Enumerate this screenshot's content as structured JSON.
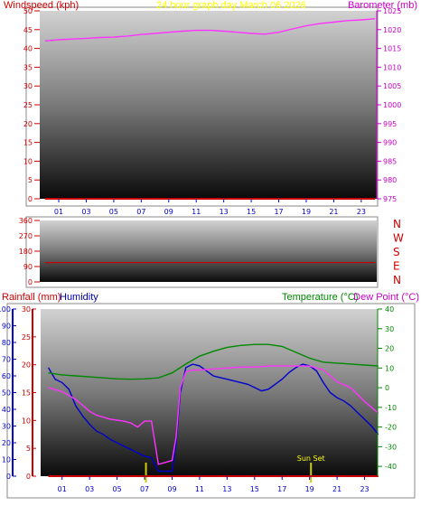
{
  "chart_data": [
    {
      "type": "line",
      "panel": "wind-barometer",
      "title": "24 hour graph day   March 06 2026",
      "left_label": "Windspeed (kph)",
      "right_label": "Barometer (mb)",
      "x_ticks": [
        "01",
        "03",
        "05",
        "07",
        "09",
        "11",
        "13",
        "15",
        "17",
        "19",
        "21",
        "23"
      ],
      "y_left_ticks": [
        "0",
        "5",
        "10",
        "15",
        "20",
        "25",
        "30",
        "35",
        "40",
        "45",
        "50"
      ],
      "y_left_range": [
        0,
        50
      ],
      "y_right_ticks": [
        "975",
        "980",
        "985",
        "990",
        "995",
        "1000",
        "1005",
        "1010",
        "1015",
        "1020",
        "1025"
      ],
      "y_right_range": [
        975,
        1025
      ],
      "series": [
        {
          "axis": "right",
          "color": "#ff33ff",
          "x": [
            0,
            1,
            2,
            3,
            4,
            5,
            6,
            7,
            8,
            9,
            10,
            11,
            12,
            13,
            14,
            15,
            16,
            17,
            18,
            19,
            20,
            21,
            22,
            23,
            24
          ],
          "y": [
            1017,
            1017.3,
            1017.5,
            1017.7,
            1017.9,
            1018,
            1018.3,
            1018.7,
            1019,
            1019.3,
            1019.6,
            1019.8,
            1019.8,
            1019.6,
            1019.3,
            1019,
            1018.8,
            1019.3,
            1020.2,
            1021,
            1021.6,
            1022,
            1022.4,
            1022.6,
            1022.9
          ]
        },
        {
          "axis": "left",
          "color": "#cc0000",
          "x": [
            0,
            24
          ],
          "y": [
            0,
            0
          ]
        }
      ]
    },
    {
      "type": "line",
      "panel": "wind-direction",
      "y_left_ticks": [
        "0",
        "90",
        "180",
        "270",
        "360"
      ],
      "y_left_range": [
        0,
        360
      ],
      "compass": [
        "N",
        "W",
        "S",
        "E",
        "N"
      ],
      "series": [
        {
          "color": "#cc0000",
          "x": [
            0,
            24
          ],
          "y": [
            113,
            113
          ]
        }
      ]
    },
    {
      "type": "line",
      "panel": "rain-humidity-temperature",
      "left_label_rain": "Rainfall (mm)",
      "left_label_humidity": "Humidity",
      "right_label_temp": "Temperature (°C)",
      "right_label_dew": "Dew Point (°C)",
      "x_ticks": [
        "01",
        "03",
        "05",
        "07",
        "09",
        "11",
        "13",
        "15",
        "17",
        "19",
        "21",
        "23"
      ],
      "y_humidity_ticks": [
        "0",
        "10",
        "20",
        "30",
        "40",
        "50",
        "60",
        "70",
        "80",
        "90",
        "100"
      ],
      "y_humidity_range": [
        0,
        100
      ],
      "y_rain_ticks": [
        "0",
        "5",
        "10",
        "15",
        "20",
        "25",
        "30"
      ],
      "y_rain_range": [
        0,
        30
      ],
      "y_temp_ticks": [
        "-40",
        "-30",
        "-20",
        "-10",
        "0",
        "10",
        "20",
        "30",
        "40"
      ],
      "y_temp_range": [
        -45,
        40
      ],
      "annotations": [
        {
          "text": "Sun Set",
          "x": 19.1
        },
        {
          "text": "",
          "x": 7.1
        },
        {
          "text": "",
          "x": 19.1
        }
      ],
      "series": [
        {
          "name": "Humidity",
          "axis": "humidity",
          "color": "#0000cc",
          "x": [
            0,
            0.5,
            1,
            1.5,
            2,
            2.5,
            3,
            3.5,
            4,
            4.5,
            5,
            5.5,
            6,
            6.5,
            7,
            7.5,
            8,
            8.5,
            9,
            9.3,
            9.6,
            10,
            10.5,
            11,
            11.5,
            12,
            12.5,
            13,
            13.5,
            14,
            14.5,
            15,
            15.5,
            16,
            16.5,
            17,
            17.5,
            18,
            18.5,
            19,
            19.5,
            20,
            20.5,
            21,
            21.5,
            22,
            22.5,
            23,
            23.5,
            24
          ],
          "y": [
            65,
            58,
            56,
            52,
            42,
            36,
            31,
            27,
            25,
            22,
            20,
            18,
            16,
            14,
            12,
            11,
            3,
            3,
            3,
            20,
            50,
            65,
            67,
            66,
            63,
            60,
            59,
            58,
            57,
            56,
            55,
            53,
            51,
            52,
            55,
            58,
            62,
            65,
            67,
            66,
            63,
            56,
            50,
            47,
            45,
            42,
            38,
            34,
            30,
            25
          ]
        },
        {
          "name": "Temperature (°C)",
          "axis": "temp",
          "color": "#008800",
          "x": [
            0,
            1,
            2,
            3,
            4,
            5,
            6,
            7,
            8,
            9,
            10,
            11,
            12,
            13,
            14,
            15,
            16,
            17,
            18,
            19,
            20,
            21,
            22,
            23,
            24
          ],
          "y": [
            7.5,
            6.5,
            6,
            5.5,
            5,
            4.5,
            4.3,
            4.5,
            5,
            7.5,
            12,
            16,
            18.5,
            20.5,
            21.5,
            22,
            22,
            21,
            18,
            15,
            13,
            12.5,
            12,
            11.5,
            11
          ]
        },
        {
          "name": "Dew Point (°C)",
          "axis": "temp",
          "color": "#ff33ff",
          "x": [
            0,
            0.5,
            1,
            1.5,
            2,
            2.5,
            3,
            3.5,
            4,
            4.5,
            5,
            5.5,
            6,
            6.5,
            7,
            7.5,
            8,
            8.5,
            9,
            9.3,
            9.6,
            10,
            10.5,
            11,
            12,
            13,
            14,
            15,
            16,
            17,
            18,
            19,
            20,
            21,
            22,
            23,
            24
          ],
          "y": [
            0,
            -1,
            -2,
            -4,
            -6,
            -9,
            -12,
            -14,
            -15,
            -16,
            -16.5,
            -17,
            -18,
            -20,
            -17,
            -17,
            -39,
            -38,
            -37,
            -25,
            0,
            8,
            9,
            9,
            9.5,
            10,
            10.5,
            10.5,
            11,
            11,
            11,
            11,
            9,
            3,
            0,
            -7,
            -13
          ]
        },
        {
          "name": "Rainfall (mm)",
          "axis": "rain",
          "color": "#cc0000",
          "x": [
            0,
            24
          ],
          "y": [
            0,
            0
          ]
        }
      ]
    }
  ]
}
